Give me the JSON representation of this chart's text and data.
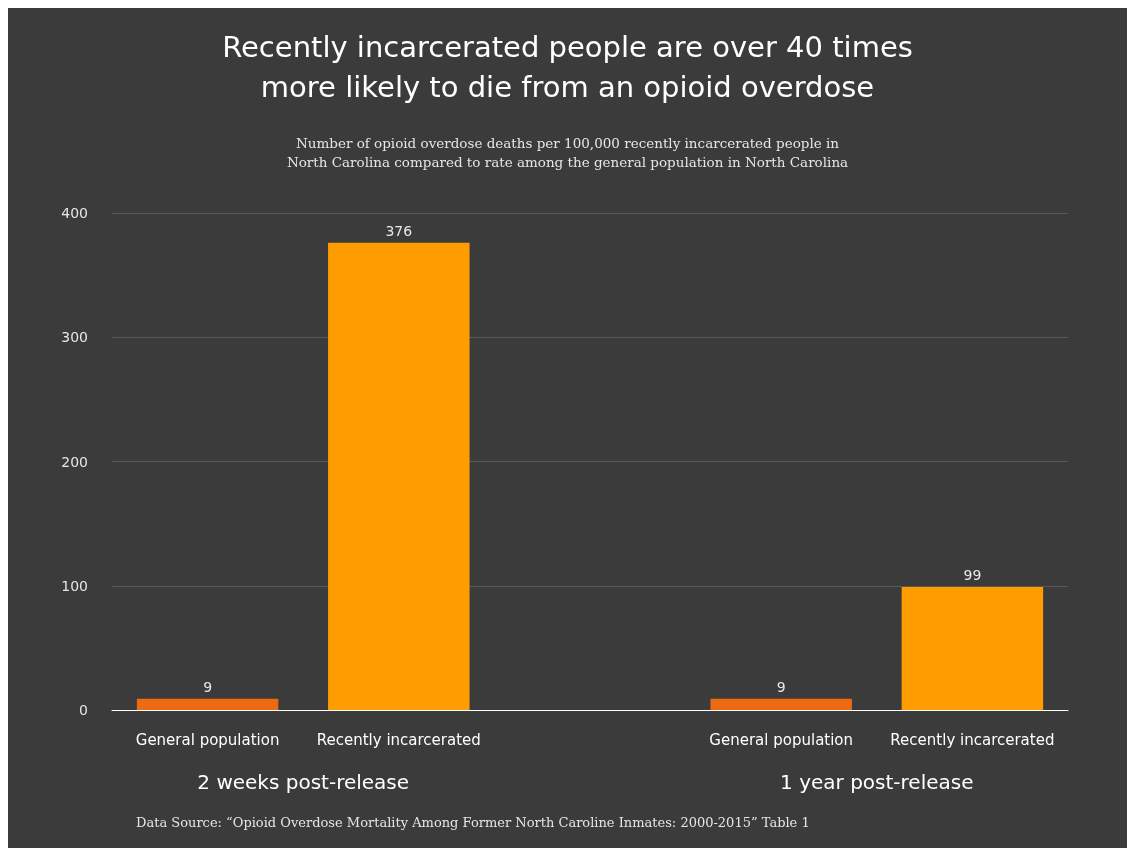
{
  "chart_data": {
    "type": "bar",
    "title": "Recently incarcerated people are over 40 times\nmore likely to die from an opioid overdose",
    "subtitle": "Number of opioid overdose deaths per 100,000 recently incarcerated people in\nNorth Carolina compared to rate among the general population in North Carolina",
    "categories": [
      "General population",
      "Recently incarcerated",
      null,
      "General population",
      "Recently incarcerated"
    ],
    "values": [
      9,
      376,
      null,
      9,
      99
    ],
    "colors": [
      "#ec6a12",
      "#ff9c00",
      "#ff9c00",
      "#ec6a12",
      "#ff9c00"
    ],
    "ylim": [
      0,
      400
    ],
    "yticks": [
      0,
      100,
      200,
      300,
      400
    ],
    "grid": "y",
    "data_labels": true,
    "annotations": [
      "2 weeks post-release",
      "1 year post-release",
      "Data Source: “Opioid Overdose Mortality Among Former North Caroline Inmates: 2000-2015” Table 1"
    ]
  }
}
